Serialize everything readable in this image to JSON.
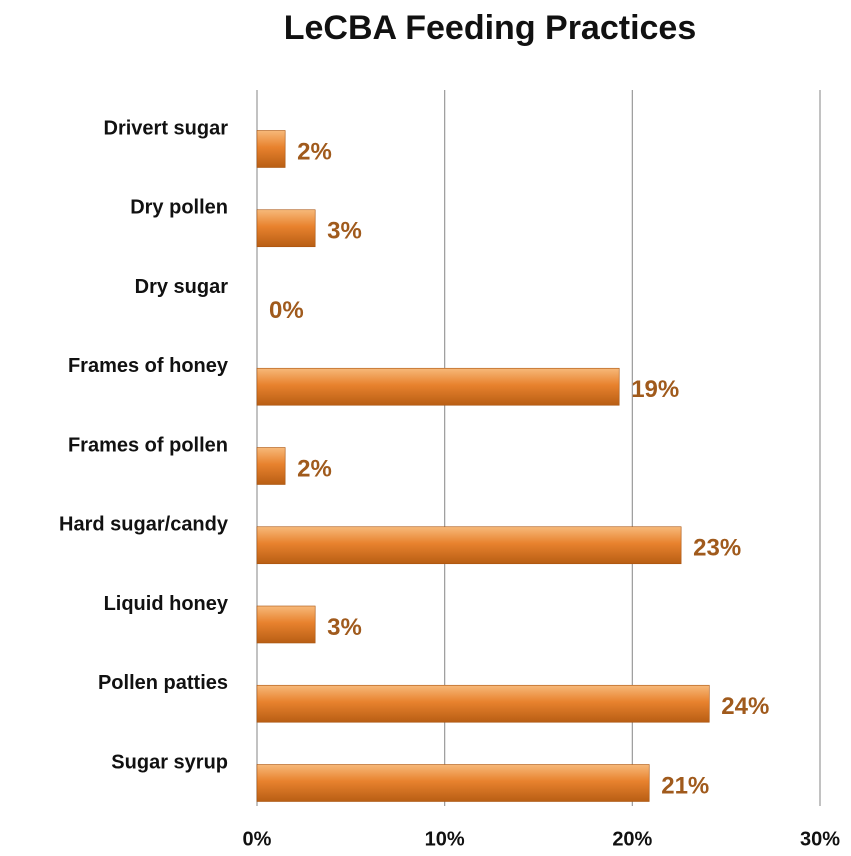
{
  "chart_data": {
    "type": "bar",
    "orientation": "horizontal",
    "title": "LeCBA Feeding Practices",
    "categories": [
      "Drivert sugar",
      "Dry pollen",
      "Dry sugar",
      "Frames of honey",
      "Frames of pollen",
      "Hard sugar/candy",
      "Liquid honey",
      "Pollen patties",
      "Sugar syrup"
    ],
    "values": [
      1.5,
      3.1,
      0,
      19.3,
      1.5,
      22.6,
      3.1,
      24.1,
      20.9
    ],
    "value_labels": [
      "2%",
      "3%",
      "0%",
      "19%",
      "2%",
      "23%",
      "3%",
      "24%",
      "21%"
    ],
    "color": "#e8822e",
    "xlim": [
      0,
      30
    ],
    "xticks": [
      {
        "value": 0,
        "label": "0%"
      },
      {
        "value": 10,
        "label": "10%"
      },
      {
        "value": 20,
        "label": "20%"
      },
      {
        "value": 30,
        "label": "30%"
      }
    ],
    "grid": true
  }
}
